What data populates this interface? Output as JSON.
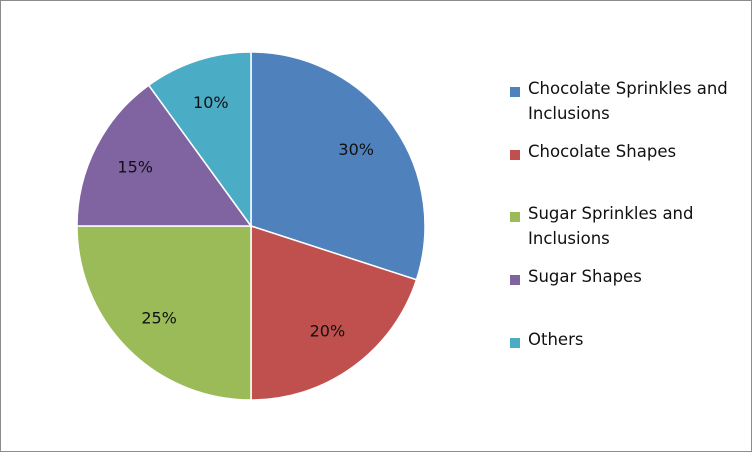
{
  "chart_data": {
    "type": "pie",
    "categories": [
      "Chocolate Sprinkles and Inclusions",
      "Chocolate Shapes",
      "Sugar Sprinkles and Inclusions",
      "Sugar Shapes",
      "Others"
    ],
    "values": [
      30,
      20,
      25,
      15,
      10
    ],
    "labels": [
      "30%",
      "20%",
      "25%",
      "15%",
      "10%"
    ],
    "colors": [
      "#4f81bd",
      "#c0504d",
      "#9bbb59",
      "#8064a2",
      "#4bacc6"
    ],
    "title": "",
    "legend_position": "right"
  }
}
